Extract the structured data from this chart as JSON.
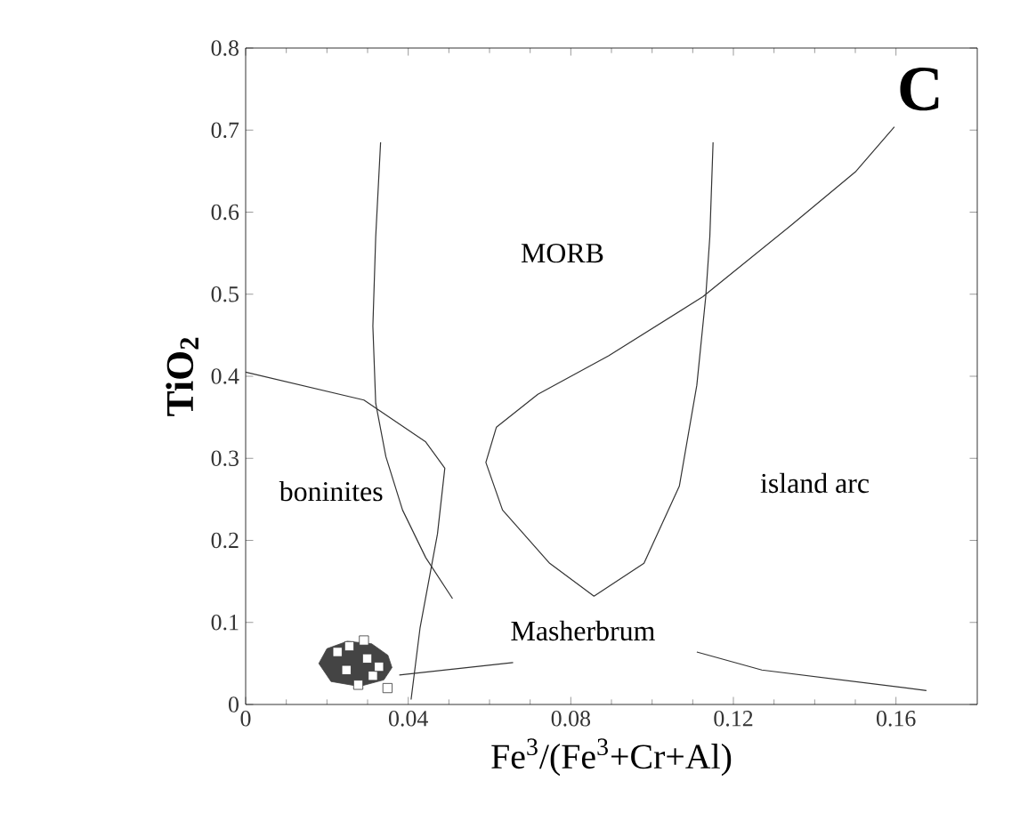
{
  "chart_data": {
    "type": "line",
    "xlabel": "Fe$^{3}$/(Fe$^{3}$+Cr+Al)",
    "ylabel": "**TiO$_{2}$**",
    "xlim": [
      0,
      0.18
    ],
    "ylim": [
      0,
      0.8
    ],
    "xticks": [
      0,
      0.04,
      0.08,
      0.12,
      0.16
    ],
    "yticks": [
      0,
      0.1,
      0.2,
      0.3,
      0.4,
      0.5,
      0.6,
      0.7,
      0.8
    ],
    "line_style": "solid",
    "annotations": [
      "**C**",
      "MORB",
      "boninites",
      "island arc",
      "Masherbrum"
    ],
    "series": [
      {
        "color": "#333333",
        "x": [
          0.0332,
          0.032,
          0.0313,
          0.032,
          0.0345,
          0.0386,
          0.0443,
          0.0509
        ],
        "values": [
          0.685,
          0.57,
          0.461,
          0.367,
          0.302,
          0.237,
          0.179,
          0.129
        ]
      },
      {
        "color": "#333333",
        "x": [
          0,
          0.0291,
          0.0443,
          0.049,
          0.0472,
          0.0429,
          0.0407
        ],
        "values": [
          0.405,
          0.371,
          0.32,
          0.288,
          0.208,
          0.093,
          0.006
        ]
      },
      {
        "color": "#333333",
        "x": [
          0.115,
          0.1142,
          0.1132,
          0.111,
          0.1067,
          0.098,
          0.0857,
          0.0748,
          0.0632,
          0.0591,
          0.0617,
          0.0719,
          0.0893,
          0.1125,
          0.1342,
          0.15,
          0.1596
        ],
        "values": [
          0.685,
          0.57,
          0.497,
          0.389,
          0.266,
          0.172,
          0.132,
          0.172,
          0.237,
          0.295,
          0.338,
          0.378,
          0.425,
          0.497,
          0.584,
          0.649,
          0.704
        ]
      },
      {
        "color": "#333333",
        "x": [
          0.111,
          0.127,
          0.1675
        ],
        "values": [
          0.064,
          0.042,
          0.017
        ]
      },
      {
        "color": "#333333",
        "x": [
          0.0658,
          0.0378
        ],
        "values": [
          0.051,
          0.036
        ]
      },
      {
        "type": "area",
        "color": "#444444",
        "x": [
          0.018,
          0.02,
          0.025,
          0.031,
          0.035,
          0.036,
          0.034,
          0.028,
          0.021,
          0.018
        ],
        "values": [
          0.05,
          0.068,
          0.077,
          0.074,
          0.06,
          0.045,
          0.03,
          0.022,
          0.028,
          0.05
        ]
      },
      {
        "type": "scatter",
        "color": "#333333",
        "marker": "square",
        "x": [
          0.0255,
          0.0291,
          0.0248,
          0.0313,
          0.0277,
          0.0349,
          0.0226,
          0.0299,
          0.0328
        ],
        "values": [
          0.071,
          0.078,
          0.042,
          0.035,
          0.024,
          0.02,
          0.064,
          0.056,
          0.046
        ]
      }
    ]
  }
}
